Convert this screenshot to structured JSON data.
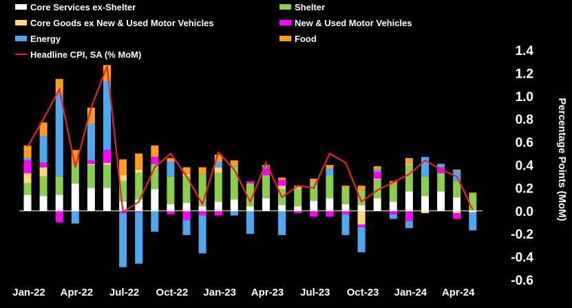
{
  "chart_data": {
    "type": "bar",
    "stacked": true,
    "categories": [
      "Jan-22",
      "Feb-22",
      "Mar-22",
      "Apr-22",
      "May-22",
      "Jun-22",
      "Jul-22",
      "Aug-22",
      "Sep-22",
      "Oct-22",
      "Nov-22",
      "Dec-22",
      "Jan-23",
      "Feb-23",
      "Mar-23",
      "Apr-23",
      "May-23",
      "Jun-23",
      "Jul-23",
      "Aug-23",
      "Sep-23",
      "Oct-23",
      "Nov-23",
      "Dec-23",
      "Jan-24",
      "Feb-24",
      "Mar-24",
      "Apr-24",
      "May-24"
    ],
    "x_tick_labels": [
      {
        "index": 0,
        "label": "Jan-22"
      },
      {
        "index": 3,
        "label": "Apr-22"
      },
      {
        "index": 6,
        "label": "Jul-22"
      },
      {
        "index": 9,
        "label": "Oct-22"
      },
      {
        "index": 12,
        "label": "Jan-23"
      },
      {
        "index": 15,
        "label": "Apr-23"
      },
      {
        "index": 18,
        "label": "Jul-23"
      },
      {
        "index": 21,
        "label": "Oct-23"
      },
      {
        "index": 24,
        "label": "Jan-24"
      },
      {
        "index": 27,
        "label": "Apr-24"
      }
    ],
    "series": [
      {
        "name": "Core Services ex-Shelter",
        "color": "#ffffff",
        "values": [
          0.14,
          0.13,
          0.14,
          0.24,
          0.2,
          0.2,
          0.08,
          0.1,
          0.19,
          0.06,
          0.07,
          0.04,
          0.08,
          0.1,
          0.04,
          0.11,
          0.05,
          0.04,
          0.09,
          0.11,
          0.06,
          0.05,
          0.11,
          0.08,
          0.17,
          0.13,
          0.17,
          0.12,
          -0.01
        ]
      },
      {
        "name": "Shelter",
        "color": "#8ccf4d",
        "values": [
          0.1,
          0.17,
          0.16,
          0.18,
          0.2,
          0.2,
          0.18,
          0.23,
          0.22,
          0.24,
          0.23,
          0.28,
          0.25,
          0.29,
          0.2,
          0.2,
          0.14,
          0.15,
          0.16,
          0.2,
          0.14,
          0.13,
          0.16,
          0.15,
          0.23,
          0.17,
          0.16,
          0.14,
          0.15
        ]
      },
      {
        "name": "Core Goods ex New & Used Motor Vehicles",
        "color": "#ffd87a",
        "values": [
          0.09,
          0.08,
          0.0,
          0.0,
          0.01,
          0.02,
          0.05,
          0.03,
          0.0,
          0.0,
          0.02,
          0.0,
          0.05,
          0.0,
          0.0,
          0.0,
          0.03,
          0.01,
          0.0,
          0.0,
          0.0,
          -0.12,
          0.01,
          0.0,
          0.01,
          -0.02,
          0.0,
          -0.02,
          0.0
        ]
      },
      {
        "name": "New & Used Motor Vehicles",
        "color": "#ff00ff",
        "values": [
          0.11,
          0.04,
          -0.1,
          0.0,
          0.03,
          0.11,
          -0.02,
          -0.01,
          0.06,
          -0.03,
          -0.08,
          -0.04,
          -0.04,
          0.0,
          0.02,
          0.06,
          0.05,
          -0.02,
          -0.05,
          -0.05,
          -0.03,
          -0.02,
          0.06,
          -0.03,
          -0.09,
          0.0,
          0.05,
          -0.05,
          0.0
        ]
      },
      {
        "name": "Energy",
        "color": "#4ea8f0",
        "values": [
          0.02,
          0.23,
          0.72,
          -0.11,
          0.32,
          0.6,
          -0.47,
          -0.45,
          -0.18,
          0.13,
          -0.13,
          -0.33,
          0.05,
          -0.04,
          -0.2,
          0.02,
          -0.21,
          0.0,
          0.0,
          0.06,
          -0.18,
          -0.22,
          0.02,
          -0.04,
          -0.06,
          0.17,
          0.03,
          0.09,
          -0.16
        ]
      },
      {
        "name": "Food",
        "color": "#ff9e1b",
        "values": [
          0.11,
          0.12,
          0.13,
          0.11,
          0.14,
          0.14,
          0.14,
          0.14,
          0.1,
          0.03,
          0.06,
          0.06,
          0.06,
          0.05,
          0.0,
          0.01,
          0.02,
          0.02,
          0.03,
          0.03,
          0.02,
          0.04,
          0.03,
          0.03,
          0.05,
          0.0,
          0.0,
          0.01,
          0.01
        ]
      }
    ],
    "line": {
      "name": "Headline CPI, SA (% MoM)",
      "color": "#e8202a",
      "values": [
        0.56,
        0.8,
        1.06,
        0.38,
        0.9,
        1.26,
        -0.01,
        0.08,
        0.38,
        0.5,
        0.3,
        0.06,
        0.51,
        0.36,
        0.08,
        0.42,
        0.12,
        0.22,
        0.2,
        0.5,
        0.42,
        0.08,
        0.18,
        0.25,
        0.32,
        0.44,
        0.36,
        0.3,
        0.01
      ]
    },
    "legend": [
      {
        "label": "Core Services ex-Shelter",
        "color": "#ffffff",
        "kind": "box"
      },
      {
        "label": "Shelter",
        "color": "#8ccf4d",
        "kind": "box"
      },
      {
        "label": "Core Goods ex New & Used Motor Vehicles",
        "color": "#ffd87a",
        "kind": "box"
      },
      {
        "label": "New & Used Motor Vehicles",
        "color": "#ff00ff",
        "kind": "box"
      },
      {
        "label": "Energy",
        "color": "#4ea8f0",
        "kind": "box"
      },
      {
        "label": "Food",
        "color": "#ff9e1b",
        "kind": "box"
      },
      {
        "label": "Headline CPI, SA (% MoM)",
        "color": "#e8202a",
        "kind": "line"
      }
    ],
    "legend_position": "top-left",
    "ylabel": "Percentage Points (MoM)",
    "ylim": [
      -0.6,
      1.4
    ],
    "yticks": [
      "1.4",
      "1.2",
      "1.0",
      "0.8",
      "0.6",
      "0.4",
      "0.2",
      "0.0",
      "-0.2",
      "-0.4",
      "-0.6"
    ],
    "y_axis_side": "right",
    "grid": false,
    "background": "#000000"
  }
}
